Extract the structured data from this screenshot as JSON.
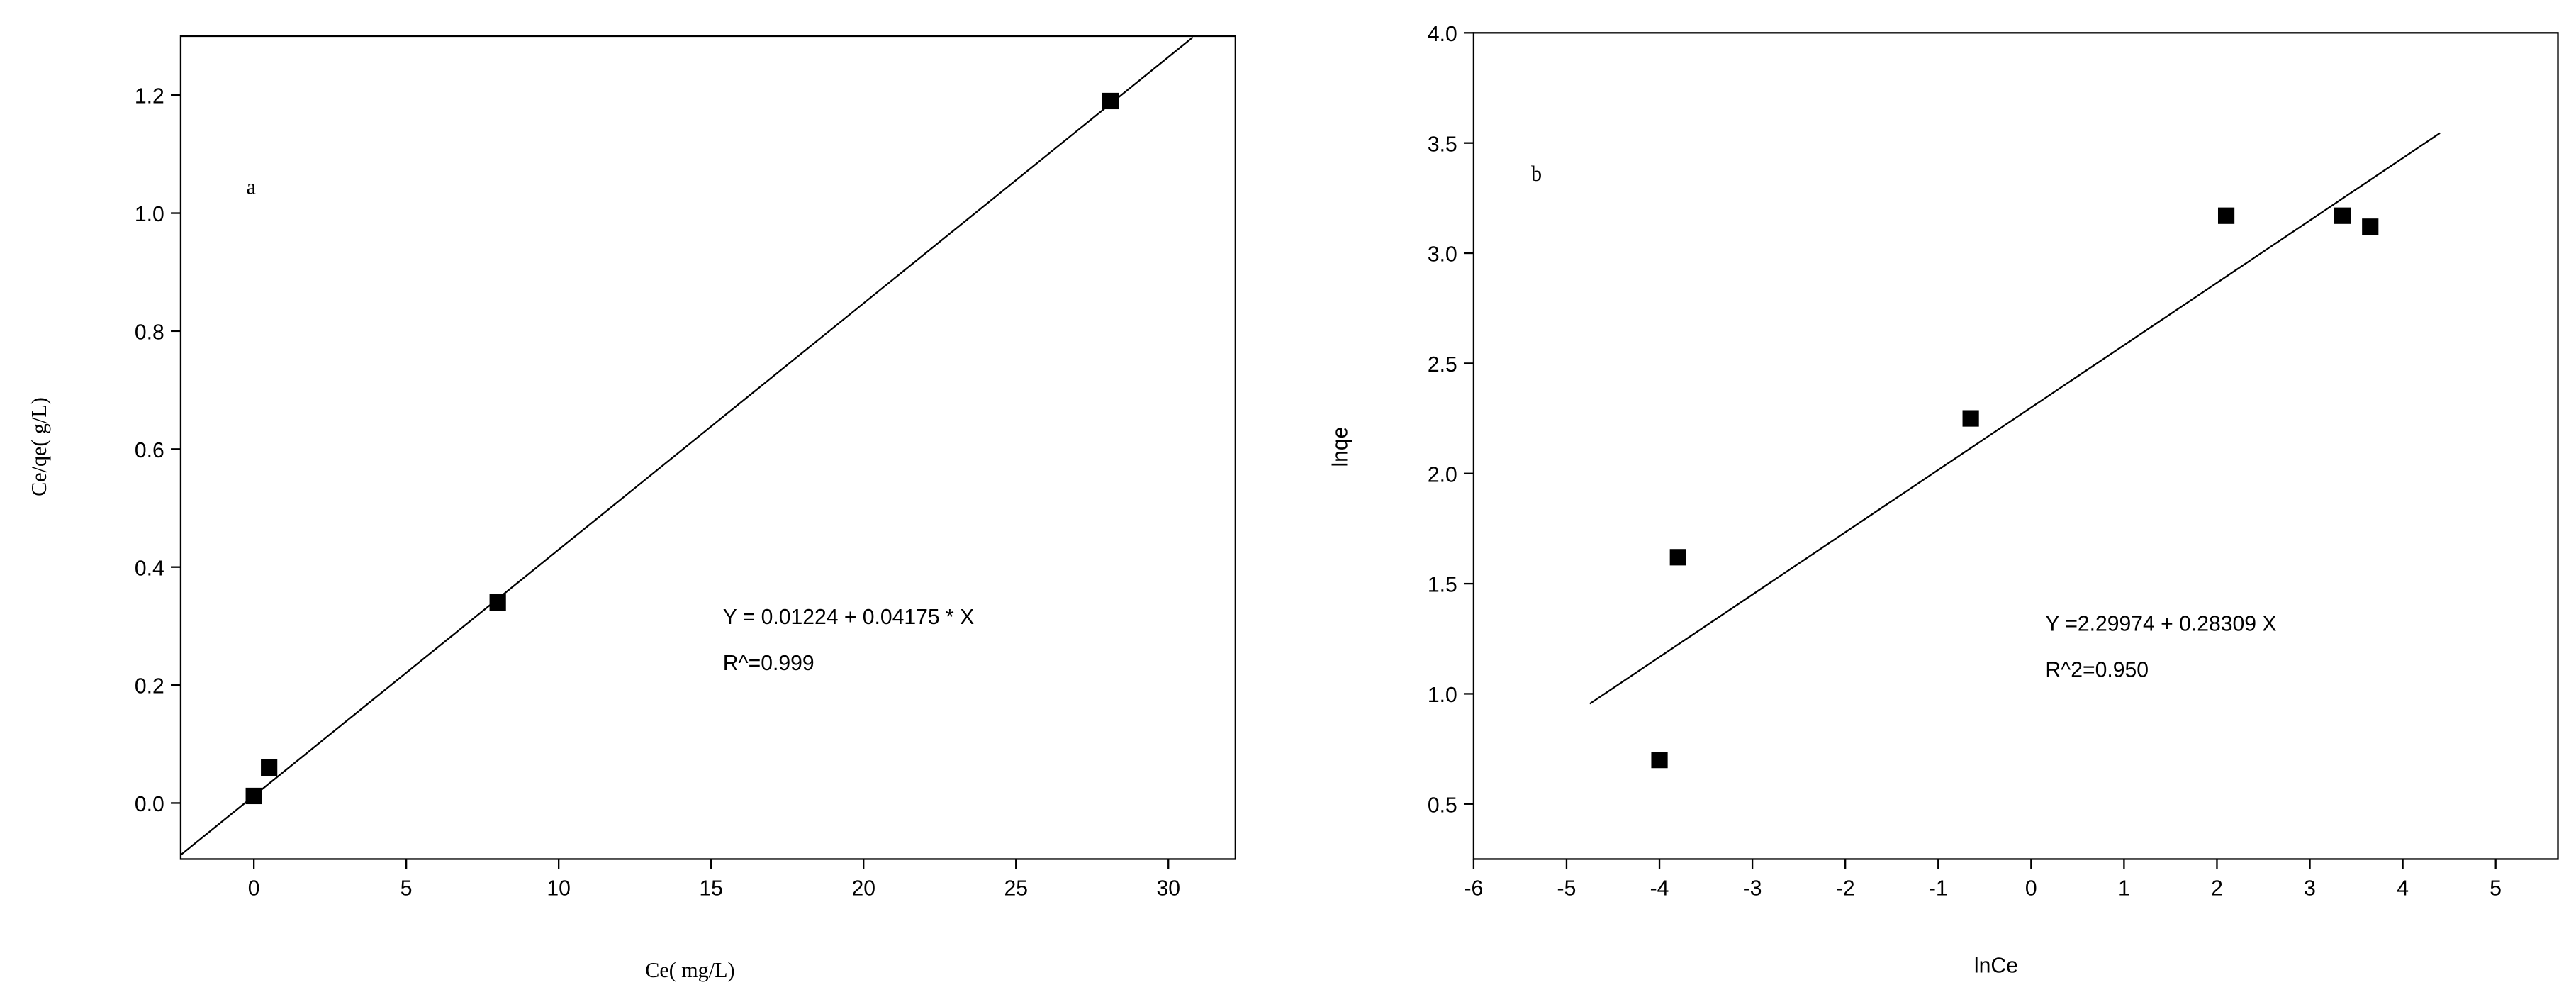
{
  "chart_data": [
    {
      "type": "scatter",
      "x_label": "Ce( mg/L)",
      "y_label": "Ce/qe( g/L)",
      "annotations": [
        "a",
        "Y = 0.01224 + 0.04175 * X",
        "R^=0.999"
      ],
      "xlim": [
        -2.4,
        32.2
      ],
      "ylim": [
        -0.095,
        1.3
      ],
      "xticks": [
        0,
        5,
        10,
        15,
        20,
        25,
        30
      ],
      "yticks": [
        {
          "value": 0,
          "label": "0.0"
        },
        0.2,
        0.4,
        0.6,
        0.8,
        {
          "value": 1,
          "label": "1.0"
        },
        1.2
      ],
      "series": [
        {
          "color": "#000000",
          "x": [
            0,
            0.5,
            8,
            28.1
          ],
          "values": [
            0.012,
            0.06,
            0.34,
            1.19
          ]
        }
      ],
      "fit_line": {
        "color": "#000000",
        "x": [
          -2.4,
          30.8
        ],
        "values": [
          -0.088,
          1.298
        ]
      }
    },
    {
      "type": "scatter",
      "x_label": "lnCe",
      "y_label": "lnqe",
      "annotations": [
        "b",
        "Y =2.29974 + 0.28309 X",
        "R^2=0.950"
      ],
      "xlim": [
        -6,
        5.67
      ],
      "ylim": [
        0.25,
        4.0
      ],
      "xticks": [
        -6,
        -5,
        -4,
        -3,
        -2,
        -1,
        0,
        1,
        2,
        3,
        4,
        5
      ],
      "yticks": [
        0.5,
        {
          "value": 1,
          "label": "1.0"
        },
        1.5,
        {
          "value": 2,
          "label": "2.0"
        },
        2.5,
        {
          "value": 3,
          "label": "3.0"
        },
        3.5,
        {
          "value": 4,
          "label": "4.0"
        }
      ],
      "series": [
        {
          "color": "#000000",
          "x": [
            -4.0,
            -3.8,
            -0.65,
            2.1,
            3.35,
            3.65
          ],
          "values": [
            0.7,
            1.62,
            2.25,
            3.17,
            3.17,
            3.12
          ]
        }
      ],
      "fit_line": {
        "color": "#000000",
        "x": [
          -4.75,
          4.4
        ],
        "values": [
          0.955,
          3.545
        ]
      }
    }
  ]
}
